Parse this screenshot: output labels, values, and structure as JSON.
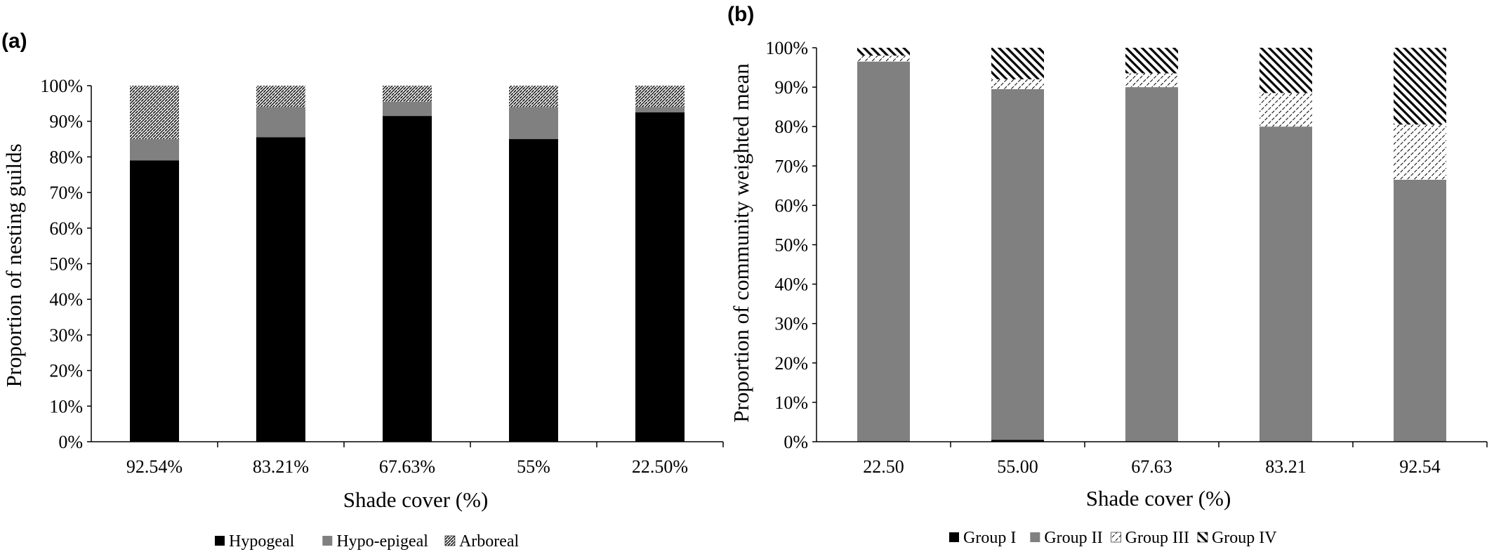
{
  "chart_data": [
    {
      "panel": "(a)",
      "type": "bar",
      "stacked": true,
      "xlabel": "Shade cover (%)",
      "ylabel": "Proportion of nesting guilds",
      "ylim": [
        0,
        100
      ],
      "yticks": [
        "0%",
        "10%",
        "20%",
        "30%",
        "40%",
        "50%",
        "60%",
        "70%",
        "80%",
        "90%",
        "100%"
      ],
      "categories": [
        "92.54%",
        "83.21%",
        "67.63%",
        "55%",
        "22.50%"
      ],
      "legend_position": "bottom",
      "series": [
        {
          "name": "Hypogeal",
          "values": [
            79,
            85.5,
            91.5,
            85,
            92.5
          ],
          "color": "#000000",
          "pattern": "solid"
        },
        {
          "name": "Hypo-epigeal",
          "values": [
            6,
            8.5,
            4,
            9,
            1.5
          ],
          "color": "#808080",
          "pattern": "solid"
        },
        {
          "name": "Arboreal",
          "values": [
            15,
            6,
            4.5,
            6,
            6
          ],
          "color": "#000000",
          "pattern": "dense-diagonal"
        }
      ]
    },
    {
      "panel": "(b)",
      "type": "bar",
      "stacked": true,
      "xlabel": "Shade cover (%)",
      "ylabel": "Proportion of community weighted mean",
      "ylim": [
        0,
        100
      ],
      "yticks": [
        "0%",
        "10%",
        "20%",
        "30%",
        "40%",
        "50%",
        "60%",
        "70%",
        "80%",
        "90%",
        "100%"
      ],
      "categories": [
        "22.50",
        "55.00",
        "67.63",
        "83.21",
        "92.54"
      ],
      "legend_position": "bottom",
      "series": [
        {
          "name": "Group I",
          "values": [
            0,
            0.5,
            0,
            0,
            0
          ],
          "color": "#000000",
          "pattern": "solid"
        },
        {
          "name": "Group II",
          "values": [
            96.5,
            89,
            90,
            80,
            66.5
          ],
          "color": "#808080",
          "pattern": "solid"
        },
        {
          "name": "Group III",
          "values": [
            1.5,
            2.5,
            3.5,
            8.5,
            14
          ],
          "color": "#000000",
          "pattern": "light-diagonal"
        },
        {
          "name": "Group IV",
          "values": [
            2,
            8,
            6.5,
            11.5,
            19.5
          ],
          "color": "#000000",
          "pattern": "heavy-diagonal"
        }
      ]
    }
  ]
}
